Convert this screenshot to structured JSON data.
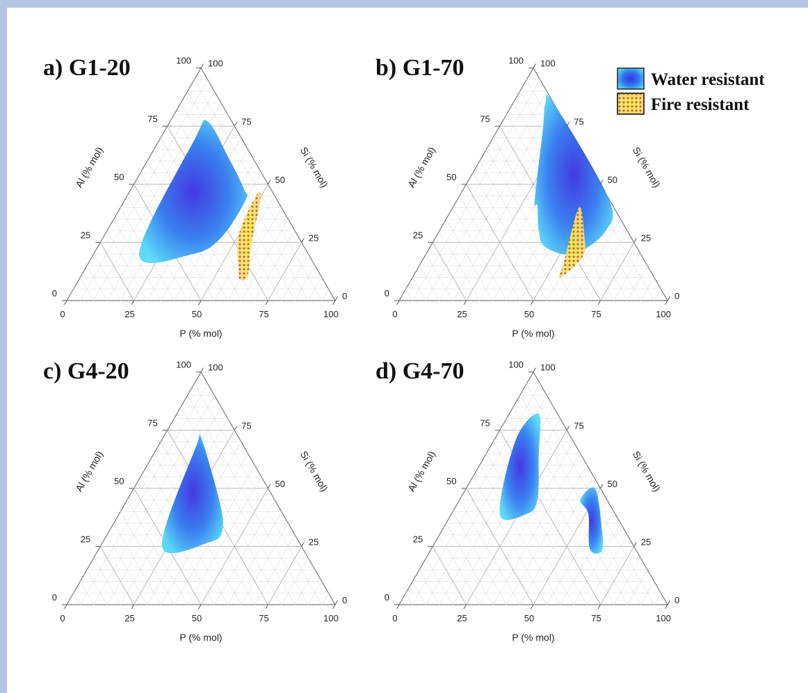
{
  "legend": [
    {
      "label": "Water resistant",
      "color": "#2f6ff0"
    },
    {
      "label": "Fire resistant",
      "color": "#f4e45a"
    }
  ],
  "axis_labels": {
    "bottom": "P (% mol)",
    "left": "Al (% mol)",
    "right": "Si (% mol)"
  },
  "tick_values": [
    "0",
    "25",
    "50",
    "75",
    "100"
  ],
  "chart_data": [
    {
      "type": "ternary",
      "title": "a) G1-20",
      "axes": {
        "a": "P (% mol)",
        "b": "Al (% mol)",
        "c": "Si (% mol)"
      },
      "grid": true,
      "regions": [
        {
          "name": "Water resistant",
          "polygon": [
            [
              14,
              77,
              9
            ],
            [
              30,
              61,
              9
            ],
            [
              42,
              48,
              10
            ],
            [
              45,
              43,
              12
            ],
            [
              44,
              27,
              29
            ],
            [
              37,
              20,
              43
            ],
            [
              17,
              20,
              63
            ],
            [
              13,
              69,
              18
            ]
          ]
        },
        {
          "name": "Fire resistant",
          "polygon": [
            [
              48,
              46,
              6
            ],
            [
              50,
              28,
              22
            ],
            [
              57,
              14,
              29
            ],
            [
              60,
              9,
              31
            ],
            [
              62,
              11,
              27
            ],
            [
              56,
              26,
              18
            ],
            [
              51,
              42,
              7
            ]
          ]
        }
      ]
    },
    {
      "type": "ternary",
      "title": "b) G1-70",
      "axes": {
        "a": "P (% mol)",
        "b": "Al (% mol)",
        "c": "Si (% mol)"
      },
      "grid": true,
      "regions": [
        {
          "name": "Water resistant",
          "polygon": [
            [
              15,
              85,
              0
            ],
            [
              56,
              44,
              0
            ],
            [
              62,
              30,
              8
            ],
            [
              55,
              20,
              25
            ],
            [
              43,
              23,
              34
            ],
            [
              37,
              30,
              33
            ],
            [
              31,
              41,
              28
            ],
            [
              29,
              43,
              28
            ],
            [
              17,
              73,
              10
            ],
            [
              12,
              85,
              3
            ]
          ]
        },
        {
          "name": "Fire resistant",
          "polygon": [
            [
              47,
              40,
              13
            ],
            [
              53,
              17,
              30
            ],
            [
              55,
              10,
              35
            ],
            [
              59,
              19,
              22
            ],
            [
              55,
              28,
              17
            ]
          ]
        }
      ]
    },
    {
      "type": "ternary",
      "title": "c) G4-20",
      "axes": {
        "a": "P (% mol)",
        "b": "Al (% mol)",
        "c": "Si (% mol)"
      },
      "grid": true,
      "regions": [
        {
          "name": "Water resistant",
          "polygon": [
            [
              14,
              72,
              14
            ],
            [
              35,
              44,
              21
            ],
            [
              42,
              32,
              26
            ],
            [
              40,
              27,
              33
            ],
            [
              23,
              25,
              52
            ],
            [
              14,
              69,
              17
            ]
          ]
        }
      ]
    },
    {
      "type": "ternary",
      "title": "d) G4-70",
      "axes": {
        "a": "P (% mol)",
        "b": "Al (% mol)",
        "c": "Si (% mol)"
      },
      "grid": true,
      "regions": [
        {
          "name": "Water resistant",
          "polygon": [
            [
              11,
              82,
              7
            ],
            [
              20,
              64,
              16
            ],
            [
              29,
              45,
              26
            ],
            [
              28,
              39,
              33
            ],
            [
              18,
              39,
              43
            ],
            [
              8,
              71,
              21
            ]
          ]
        },
        {
          "name": "Water resistant",
          "polygon": [
            [
              48,
              50,
              2
            ],
            [
              59,
              33,
              8
            ],
            [
              64,
              23,
              13
            ],
            [
              59,
              24,
              17
            ],
            [
              51,
              39,
              10
            ],
            [
              45,
              45,
              10
            ]
          ]
        }
      ]
    }
  ]
}
